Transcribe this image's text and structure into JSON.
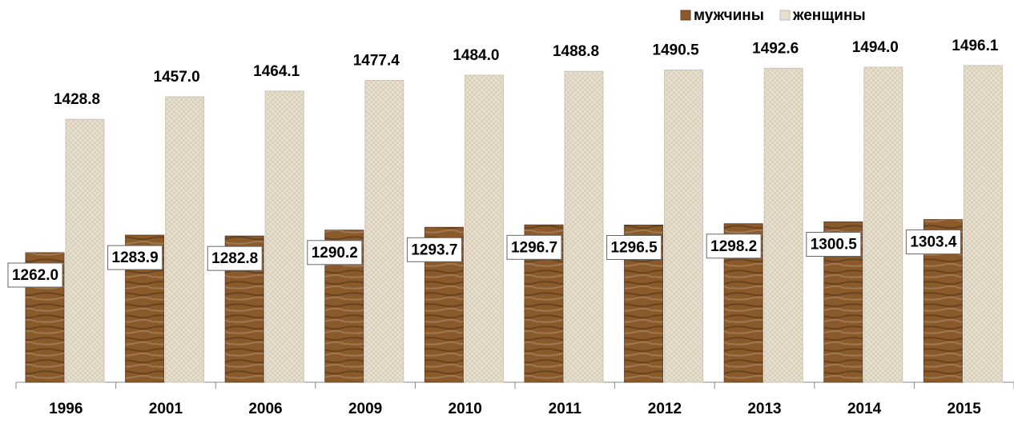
{
  "chart_data": {
    "type": "bar",
    "categories": [
      "1996",
      "2001",
      "2006",
      "2009",
      "2010",
      "2011",
      "2012",
      "2013",
      "2014",
      "2015"
    ],
    "series": [
      {
        "name": "мужчины",
        "color": "#8b5a2b",
        "values": [
          1262.0,
          1283.9,
          1282.8,
          1290.2,
          1293.7,
          1296.7,
          1296.5,
          1298.2,
          1300.5,
          1303.4
        ],
        "value_labels": [
          "1262.0",
          "1283.9",
          "1282.8",
          "1290.2",
          "1293.7",
          "1296.7",
          "1296.5",
          "1298.2",
          "1300.5",
          "1303.4"
        ]
      },
      {
        "name": "женщины",
        "color": "#e8dfcf",
        "values": [
          1428.8,
          1457.0,
          1464.1,
          1477.4,
          1484.0,
          1488.8,
          1490.5,
          1492.6,
          1494.0,
          1496.1
        ],
        "value_labels": [
          "1428.8",
          "1457.0",
          "1464.1",
          "1477.4",
          "1484.0",
          "1488.8",
          "1490.5",
          "1492.6",
          "1494.0",
          "1496.1"
        ]
      }
    ],
    "ylim": [
      1100,
      1538
    ],
    "legend": "top-right"
  }
}
